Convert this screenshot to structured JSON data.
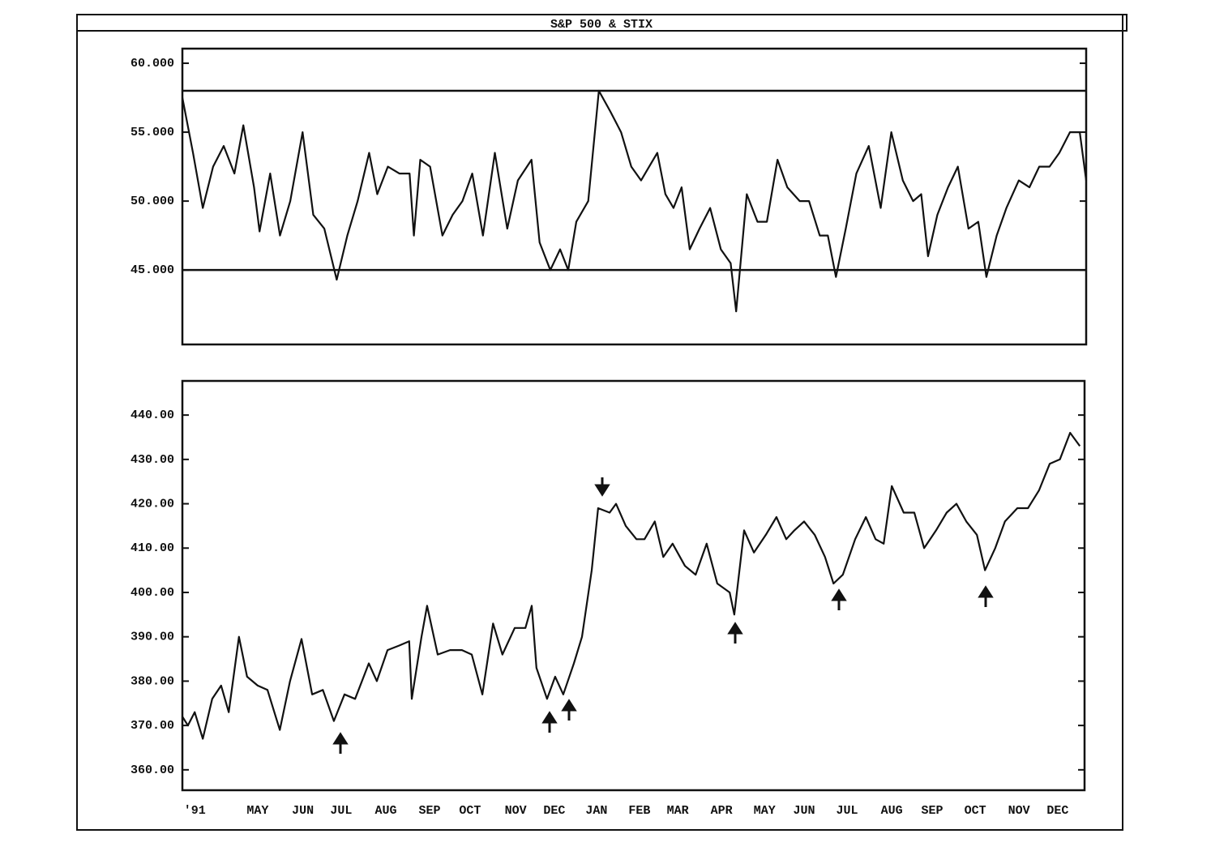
{
  "title": "S&P 500 & STIX",
  "chart_data": [
    {
      "type": "line",
      "color": "#111",
      "ylim": [
        39.6,
        61.06
      ],
      "yticks": [
        {
          "value": 45,
          "label": "45.000"
        },
        {
          "value": 50,
          "label": "50.000"
        },
        {
          "value": 55,
          "label": "55.000"
        },
        {
          "value": 60,
          "label": "60.000"
        }
      ],
      "hlines": [
        58,
        45
      ],
      "xlim": [
        0,
        21.2
      ],
      "x": [
        0,
        0.25,
        0.48,
        0.72,
        0.97,
        1.22,
        1.43,
        1.68,
        1.81,
        2.06,
        2.29,
        2.53,
        2.82,
        3.07,
        3.33,
        3.62,
        3.87,
        4.11,
        4.38,
        4.57,
        4.82,
        5.09,
        5.33,
        5.43,
        5.58,
        5.81,
        6.1,
        6.34,
        6.57,
        6.8,
        7.05,
        7.33,
        7.62,
        7.87,
        8.19,
        8.38,
        8.63,
        8.86,
        9.05,
        9.24,
        9.52,
        9.77,
        10.04,
        10.29,
        10.53,
        10.76,
        10.95,
        11.14,
        11.33,
        11.52,
        11.71,
        11.9,
        12.13,
        12.38,
        12.63,
        12.86,
        12.99,
        13.24,
        13.49,
        13.71,
        13.96,
        14.19,
        14.48,
        14.7,
        14.95,
        15.14,
        15.33,
        15.56,
        15.81,
        16.1,
        16.38,
        16.63,
        16.9,
        17.14,
        17.33,
        17.49,
        17.71,
        17.96,
        18.19,
        18.44,
        18.67,
        18.86,
        19.1,
        19.33,
        19.62,
        19.87,
        20.1,
        20.34,
        20.57,
        20.82,
        21.05,
        21.2
      ],
      "values": [
        57.5,
        53.5,
        49.5,
        52.5,
        54,
        52,
        55.5,
        51,
        47.8,
        52,
        47.5,
        50,
        55,
        49,
        48,
        44.3,
        47.5,
        50,
        53.5,
        50.5,
        52.5,
        52,
        52,
        47.5,
        53,
        52.5,
        47.5,
        49,
        50,
        52,
        47.5,
        53.5,
        48,
        51.5,
        53,
        47,
        45,
        46.5,
        45,
        48.5,
        50,
        58,
        56.5,
        55,
        52.5,
        51.5,
        52.5,
        53.5,
        50.5,
        49.5,
        51,
        46.5,
        48,
        49.5,
        46.5,
        45.5,
        42,
        50.5,
        48.5,
        48.5,
        53,
        51,
        50,
        50,
        47.5,
        47.5,
        44.5,
        48,
        52,
        54,
        49.5,
        55,
        51.5,
        50,
        50.5,
        46,
        49,
        51,
        52.5,
        48,
        48.5,
        44.5,
        47.5,
        49.5,
        51.5,
        51,
        52.5,
        52.5,
        53.5,
        55,
        55,
        51.5
      ]
    },
    {
      "type": "line",
      "color": "#111",
      "ylim": [
        355.4,
        447.7
      ],
      "yticks": [
        {
          "value": 360,
          "label": "360.00"
        },
        {
          "value": 370,
          "label": "370.00"
        },
        {
          "value": 380,
          "label": "380.00"
        },
        {
          "value": 390,
          "label": "390.00"
        },
        {
          "value": 400,
          "label": "400.00"
        },
        {
          "value": 410,
          "label": "410.00"
        },
        {
          "value": 420,
          "label": "420.00"
        },
        {
          "value": 430,
          "label": "430.00"
        },
        {
          "value": 440,
          "label": "440.00"
        }
      ],
      "xlim": [
        0,
        21.2
      ],
      "xticks": [
        {
          "value": 0.29,
          "label": "'91"
        },
        {
          "value": 1.77,
          "label": "MAY"
        },
        {
          "value": 2.83,
          "label": "JUN"
        },
        {
          "value": 3.73,
          "label": "JUL"
        },
        {
          "value": 4.78,
          "label": "AUG"
        },
        {
          "value": 5.81,
          "label": "SEP"
        },
        {
          "value": 6.76,
          "label": "OCT"
        },
        {
          "value": 7.83,
          "label": "NOV"
        },
        {
          "value": 8.74,
          "label": "DEC"
        },
        {
          "value": 9.73,
          "label": "JAN"
        },
        {
          "value": 10.74,
          "label": "FEB"
        },
        {
          "value": 11.64,
          "label": "MAR"
        },
        {
          "value": 12.67,
          "label": "APR"
        },
        {
          "value": 13.68,
          "label": "MAY"
        },
        {
          "value": 14.61,
          "label": "JUN"
        },
        {
          "value": 15.62,
          "label": "JUL"
        },
        {
          "value": 16.67,
          "label": "AUG"
        },
        {
          "value": 17.62,
          "label": "SEP"
        },
        {
          "value": 18.63,
          "label": "OCT"
        },
        {
          "value": 19.66,
          "label": "NOV"
        },
        {
          "value": 20.57,
          "label": "DEC"
        }
      ],
      "x": [
        0,
        0.13,
        0.29,
        0.48,
        0.7,
        0.91,
        1.09,
        1.33,
        1.52,
        1.77,
        2.0,
        2.29,
        2.53,
        2.8,
        3.05,
        3.3,
        3.56,
        3.81,
        4.06,
        4.38,
        4.57,
        4.82,
        5.09,
        5.33,
        5.39,
        5.62,
        5.75,
        6.0,
        6.29,
        6.57,
        6.8,
        7.05,
        7.3,
        7.52,
        7.81,
        8.06,
        8.21,
        8.32,
        8.57,
        8.76,
        8.95,
        9.2,
        9.39,
        9.62,
        9.77,
        10.04,
        10.19,
        10.42,
        10.67,
        10.86,
        11.1,
        11.3,
        11.52,
        11.81,
        12.06,
        12.32,
        12.57,
        12.86,
        12.97,
        13.2,
        13.43,
        13.71,
        13.96,
        14.19,
        14.38,
        14.61,
        14.86,
        15.1,
        15.3,
        15.52,
        15.81,
        16.06,
        16.29,
        16.48,
        16.67,
        16.95,
        17.2,
        17.43,
        17.71,
        17.96,
        18.19,
        18.42,
        18.67,
        18.86,
        19.1,
        19.33,
        19.62,
        19.87,
        20.13,
        20.38,
        20.62,
        20.86,
        21.09
      ],
      "values": [
        372,
        370,
        373,
        367,
        376,
        379,
        373,
        390,
        381,
        379,
        378,
        369,
        380,
        389.5,
        377,
        378,
        371,
        377,
        376,
        384,
        380,
        387,
        388,
        389,
        376,
        390,
        397,
        386,
        387,
        387,
        386,
        377,
        393,
        386,
        392,
        392,
        397,
        383,
        376,
        381,
        377,
        384,
        390,
        405,
        419,
        418,
        420,
        415,
        412,
        412,
        416,
        408,
        411,
        406,
        404,
        411,
        402,
        400,
        395,
        414,
        409,
        413,
        417,
        412,
        414,
        416,
        413,
        408,
        402,
        404,
        412,
        417,
        412,
        411,
        424,
        418,
        418,
        410,
        414,
        418,
        420,
        416,
        413,
        405,
        410,
        416,
        419,
        419,
        423,
        429,
        430,
        436,
        433
      ]
    }
  ]
}
